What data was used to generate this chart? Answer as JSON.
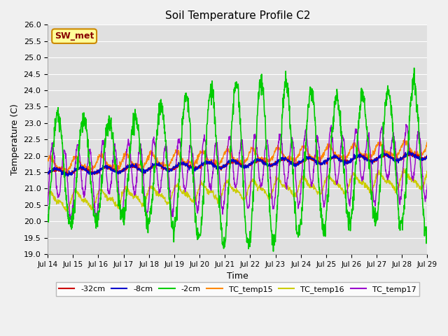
{
  "title": "Soil Temperature Profile C2",
  "xlabel": "Time",
  "ylabel": "Temperature (C)",
  "ylim": [
    19.0,
    26.0
  ],
  "yticks": [
    19.0,
    19.5,
    20.0,
    20.5,
    21.0,
    21.5,
    22.0,
    22.5,
    23.0,
    23.5,
    24.0,
    24.5,
    25.0,
    25.5,
    26.0
  ],
  "xtick_labels": [
    "Jul 14",
    "Jul 15",
    "Jul 16",
    "Jul 17",
    "Jul 18",
    "Jul 19",
    "Jul 20",
    "Jul 21",
    "Jul 22",
    "Jul 23",
    "Jul 24",
    "Jul 25",
    "Jul 26",
    "Jul 27",
    "Jul 28",
    "Jul 29"
  ],
  "series_colors": {
    "-32cm": "#cc0000",
    "-8cm": "#0000cc",
    "-2cm": "#00cc00",
    "TC_temp15": "#ff8800",
    "TC_temp16": "#cccc00",
    "TC_temp17": "#9900cc"
  },
  "legend_label": "SW_met",
  "legend_bg": "#ffff99",
  "legend_border": "#cc8800",
  "bg_color": "#e0e0e0",
  "grid_color": "#ffffff",
  "n_points": 1500,
  "time_days": 15
}
